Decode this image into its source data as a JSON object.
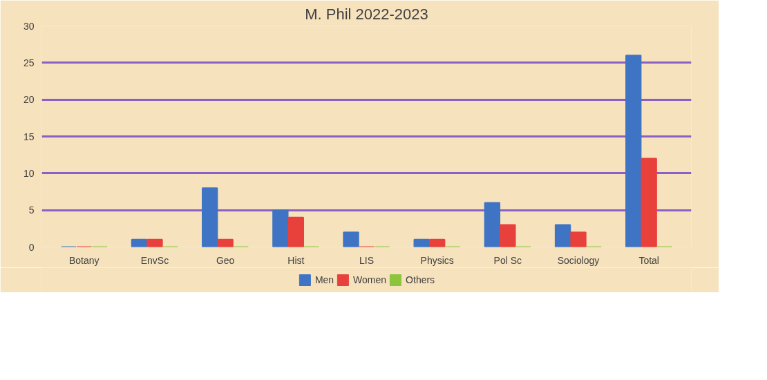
{
  "chart_data": {
    "type": "bar",
    "title": "M. Phil 2022-2023",
    "categories": [
      "Botany",
      "EnvSc",
      "Geo",
      "Hist",
      "LIS",
      "Physics",
      "Pol Sc",
      "Sociology",
      "Total"
    ],
    "series": [
      {
        "name": "Men",
        "color": "#3f74c4",
        "values": [
          0,
          1,
          8,
          5,
          2,
          1,
          6,
          3,
          26
        ]
      },
      {
        "name": "Women",
        "color": "#e8413c",
        "values": [
          0,
          1,
          1,
          4,
          0,
          1,
          3,
          2,
          12
        ]
      },
      {
        "name": "Others",
        "color": "#8cc43c",
        "values": [
          0,
          0,
          0,
          0,
          0,
          0,
          0,
          0,
          0
        ]
      }
    ],
    "ylim": [
      0,
      30
    ],
    "yticks": [
      0,
      5,
      10,
      15,
      20,
      25,
      30
    ],
    "grid": "y",
    "legend": "bottom"
  }
}
